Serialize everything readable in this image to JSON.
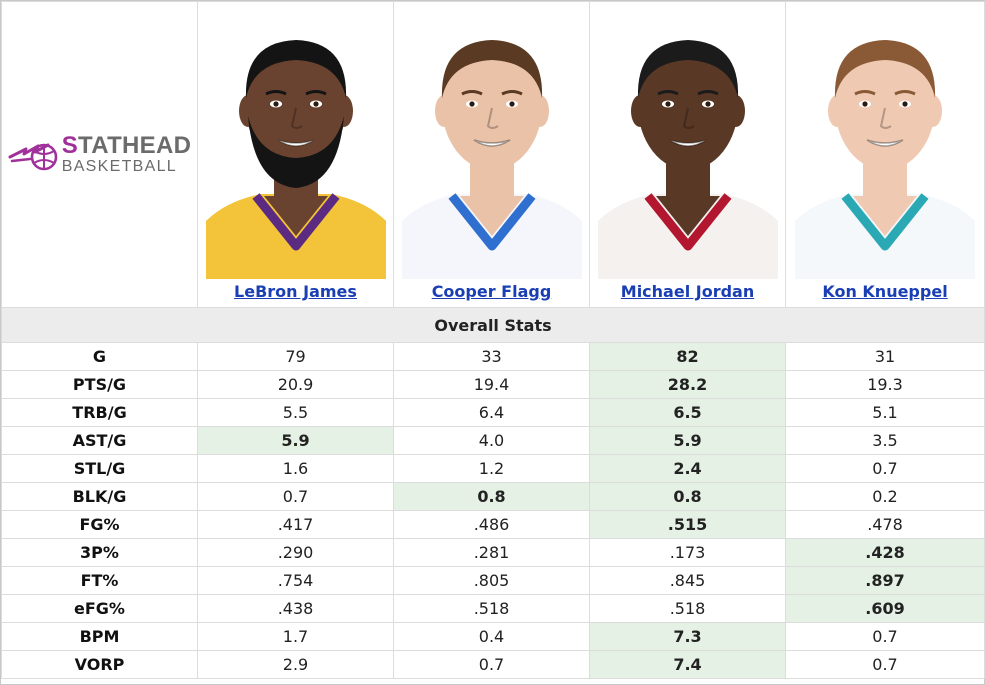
{
  "brand": {
    "top_prefix": "S",
    "top_rest": "TATHEAD",
    "bottom": "BASKETBALL"
  },
  "players": [
    {
      "name": "LeBron James",
      "jersey": "#f3c33a",
      "trim": "#5b2b82",
      "skin": "#6a4330",
      "hair": "#141414",
      "beard": true,
      "badge": "bibigo"
    },
    {
      "name": "Cooper Flagg",
      "jersey": "#f4f6fb",
      "trim": "#2f6fcf",
      "skin": "#e9c2a8",
      "hair": "#5a3a22",
      "beard": false,
      "badge": ""
    },
    {
      "name": "Michael Jordan",
      "jersey": "#f4f1ef",
      "trim": "#b3162f",
      "skin": "#5a3826",
      "hair": "#1b1b1b",
      "beard": false,
      "badge": ""
    },
    {
      "name": "Kon Knueppel",
      "jersey": "#f5f8fa",
      "trim": "#2aa9b5",
      "skin": "#efc9b1",
      "hair": "#8a5a36",
      "beard": false,
      "badge": ""
    }
  ],
  "section_title": "Overall Stats",
  "rows": [
    {
      "label": "G",
      "values": [
        "79",
        "33",
        "82",
        "31"
      ],
      "best": [
        2
      ]
    },
    {
      "label": "PTS/G",
      "values": [
        "20.9",
        "19.4",
        "28.2",
        "19.3"
      ],
      "best": [
        2
      ]
    },
    {
      "label": "TRB/G",
      "values": [
        "5.5",
        "6.4",
        "6.5",
        "5.1"
      ],
      "best": [
        2
      ]
    },
    {
      "label": "AST/G",
      "values": [
        "5.9",
        "4.0",
        "5.9",
        "3.5"
      ],
      "best": [
        0,
        2
      ]
    },
    {
      "label": "STL/G",
      "values": [
        "1.6",
        "1.2",
        "2.4",
        "0.7"
      ],
      "best": [
        2
      ]
    },
    {
      "label": "BLK/G",
      "values": [
        "0.7",
        "0.8",
        "0.8",
        "0.2"
      ],
      "best": [
        1,
        2
      ]
    },
    {
      "label": "FG%",
      "values": [
        ".417",
        ".486",
        ".515",
        ".478"
      ],
      "best": [
        2
      ]
    },
    {
      "label": "3P%",
      "values": [
        ".290",
        ".281",
        ".173",
        ".428"
      ],
      "best": [
        3
      ]
    },
    {
      "label": "FT%",
      "values": [
        ".754",
        ".805",
        ".845",
        ".897"
      ],
      "best": [
        3
      ]
    },
    {
      "label": "eFG%",
      "values": [
        ".438",
        ".518",
        ".518",
        ".609"
      ],
      "best": [
        3
      ]
    },
    {
      "label": "BPM",
      "values": [
        "1.7",
        "0.4",
        "7.3",
        "0.7"
      ],
      "best": [
        2
      ]
    },
    {
      "label": "VORP",
      "values": [
        "2.9",
        "0.7",
        "7.4",
        "0.7"
      ],
      "best": [
        2
      ]
    }
  ],
  "colors": {
    "best_bg": "#e5f1e5",
    "link": "#1a3fb5",
    "section_text": "#8b0000",
    "brand_purple": "#a0309a"
  }
}
